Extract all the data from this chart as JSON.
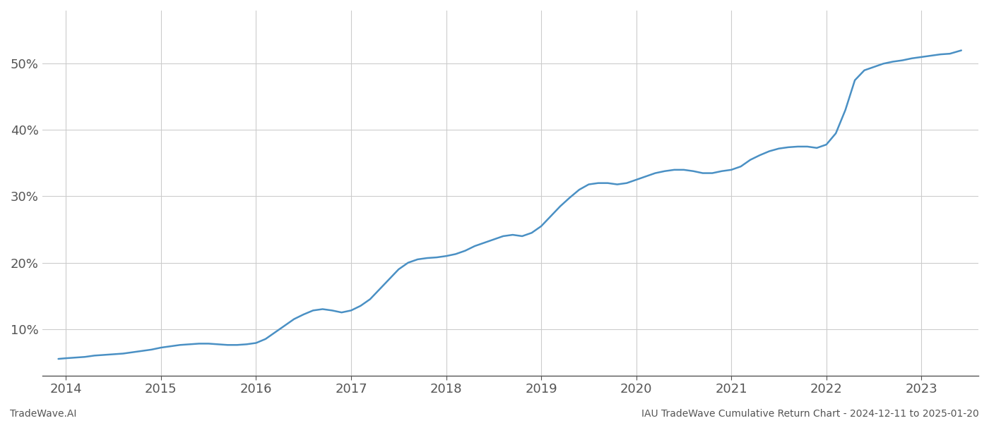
{
  "title": "",
  "footer_left": "TradeWave.AI",
  "footer_right": "IAU TradeWave Cumulative Return Chart - 2024-12-11 to 2025-01-20",
  "line_color": "#4a90c4",
  "background_color": "#ffffff",
  "grid_color": "#cccccc",
  "x_years": [
    2014,
    2015,
    2016,
    2017,
    2018,
    2019,
    2020,
    2021,
    2022,
    2023
  ],
  "x_data": [
    2013.92,
    2014.0,
    2014.1,
    2014.2,
    2014.3,
    2014.4,
    2014.5,
    2014.6,
    2014.7,
    2014.8,
    2014.9,
    2015.0,
    2015.1,
    2015.2,
    2015.3,
    2015.4,
    2015.5,
    2015.6,
    2015.7,
    2015.8,
    2015.9,
    2016.0,
    2016.1,
    2016.2,
    2016.3,
    2016.4,
    2016.5,
    2016.6,
    2016.7,
    2016.8,
    2016.9,
    2017.0,
    2017.1,
    2017.2,
    2017.3,
    2017.4,
    2017.5,
    2017.6,
    2017.7,
    2017.8,
    2017.9,
    2018.0,
    2018.1,
    2018.2,
    2018.3,
    2018.4,
    2018.5,
    2018.6,
    2018.7,
    2018.8,
    2018.9,
    2019.0,
    2019.1,
    2019.2,
    2019.3,
    2019.4,
    2019.5,
    2019.6,
    2019.7,
    2019.8,
    2019.9,
    2020.0,
    2020.1,
    2020.2,
    2020.3,
    2020.4,
    2020.5,
    2020.6,
    2020.7,
    2020.8,
    2020.9,
    2021.0,
    2021.1,
    2021.2,
    2021.3,
    2021.4,
    2021.5,
    2021.6,
    2021.7,
    2021.8,
    2021.9,
    2022.0,
    2022.1,
    2022.2,
    2022.3,
    2022.4,
    2022.5,
    2022.6,
    2022.7,
    2022.8,
    2022.9,
    2023.0,
    2023.1,
    2023.2,
    2023.3,
    2023.42
  ],
  "y_data": [
    5.5,
    5.6,
    5.7,
    5.8,
    6.0,
    6.1,
    6.2,
    6.3,
    6.5,
    6.7,
    6.9,
    7.2,
    7.4,
    7.6,
    7.7,
    7.8,
    7.8,
    7.7,
    7.6,
    7.6,
    7.7,
    7.9,
    8.5,
    9.5,
    10.5,
    11.5,
    12.2,
    12.8,
    13.0,
    12.8,
    12.5,
    12.8,
    13.5,
    14.5,
    16.0,
    17.5,
    19.0,
    20.0,
    20.5,
    20.7,
    20.8,
    21.0,
    21.3,
    21.8,
    22.5,
    23.0,
    23.5,
    24.0,
    24.2,
    24.0,
    24.5,
    25.5,
    27.0,
    28.5,
    29.8,
    31.0,
    31.8,
    32.0,
    32.0,
    31.8,
    32.0,
    32.5,
    33.0,
    33.5,
    33.8,
    34.0,
    34.0,
    33.8,
    33.5,
    33.5,
    33.8,
    34.0,
    34.5,
    35.5,
    36.2,
    36.8,
    37.2,
    37.4,
    37.5,
    37.5,
    37.3,
    37.8,
    39.5,
    43.0,
    47.5,
    49.0,
    49.5,
    50.0,
    50.3,
    50.5,
    50.8,
    51.0,
    51.2,
    51.4,
    51.5,
    52.0
  ],
  "ylim": [
    3,
    58
  ],
  "yticks": [
    10,
    20,
    30,
    40,
    50
  ],
  "xlim": [
    2013.75,
    2023.6
  ],
  "line_width": 1.8,
  "footer_fontsize": 10,
  "tick_fontsize": 13,
  "axis_color": "#555555"
}
